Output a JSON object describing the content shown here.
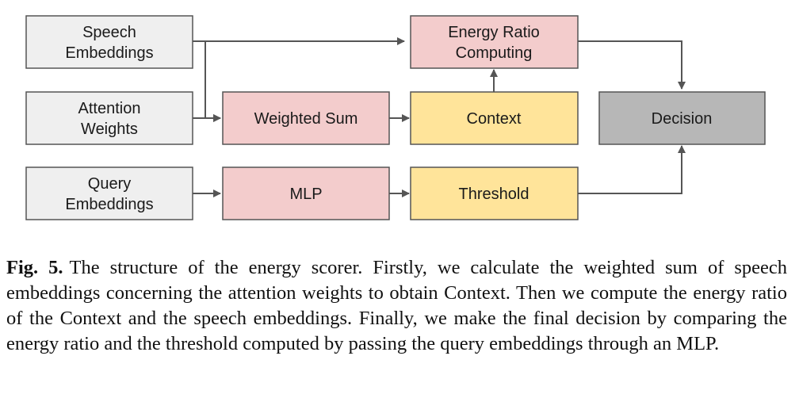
{
  "colors": {
    "input": "#efefef",
    "pink": "#f3cccc",
    "yellow": "#ffe49a",
    "decision": "#b7b7b7",
    "stroke": "#555555"
  },
  "nodes": {
    "speech": [
      "Speech",
      "Embeddings"
    ],
    "attention": [
      "Attention",
      "Weights"
    ],
    "query": [
      "Query",
      "Embeddings"
    ],
    "weighted_sum": [
      "Weighted Sum"
    ],
    "mlp": [
      "MLP"
    ],
    "energy_ratio": [
      "Energy Ratio",
      "Computing"
    ],
    "context": [
      "Context"
    ],
    "threshold": [
      "Threshold"
    ],
    "decision": [
      "Decision"
    ]
  },
  "caption": {
    "label": "Fig. 5.",
    "text": "The structure of the energy scorer. Firstly, we calculate the weighted sum of speech embeddings concerning the attention weights to obtain Context. Then we compute the energy ratio of the Context and the speech embeddings. Finally, we make the final decision by comparing the energy ratio and the threshold computed by passing the query embeddings through an MLP."
  }
}
